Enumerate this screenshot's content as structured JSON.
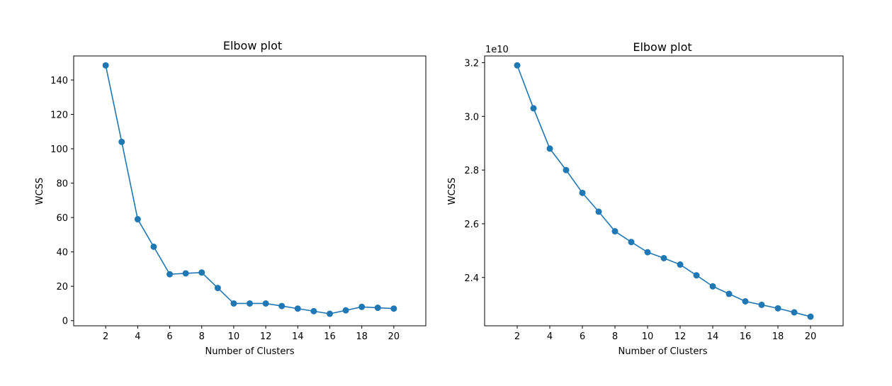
{
  "colors": {
    "series": "#1f77b4",
    "axes": "#000000",
    "background": "#ffffff"
  },
  "chart_data": [
    {
      "type": "line",
      "title": "Elbow plot",
      "xlabel": "Number of Clusters",
      "ylabel": "WCSS",
      "x": [
        2,
        3,
        4,
        5,
        6,
        7,
        8,
        9,
        10,
        11,
        12,
        13,
        14,
        15,
        16,
        17,
        18,
        19,
        20
      ],
      "series": [
        {
          "values": [
            148.5,
            104,
            59,
            43,
            27,
            27.5,
            28,
            19,
            10,
            10,
            10,
            8.5,
            7,
            5.5,
            4,
            6,
            8,
            7.5,
            7
          ],
          "marker": "circle"
        }
      ],
      "xticks": [
        2,
        4,
        6,
        8,
        10,
        12,
        14,
        16,
        18,
        20
      ],
      "yticks": [
        0,
        20,
        40,
        60,
        80,
        100,
        120,
        140
      ],
      "xlim": [
        0,
        22
      ],
      "ylim": [
        -3,
        154
      ],
      "grid": false
    },
    {
      "type": "line",
      "title": "Elbow plot",
      "xlabel": "Number of Clusters",
      "ylabel": "WCSS",
      "y_offset_label": "1e10",
      "x": [
        2,
        3,
        4,
        5,
        6,
        7,
        8,
        9,
        10,
        11,
        12,
        13,
        14,
        15,
        16,
        17,
        18,
        19,
        20
      ],
      "series": [
        {
          "values": [
            3.19,
            3.03,
            2.88,
            2.8,
            2.715,
            2.645,
            2.572,
            2.532,
            2.494,
            2.472,
            2.448,
            2.408,
            2.367,
            2.339,
            2.311,
            2.298,
            2.285,
            2.27,
            2.254
          ],
          "marker": "circle"
        }
      ],
      "xticks": [
        2,
        4,
        6,
        8,
        10,
        12,
        14,
        16,
        18,
        20
      ],
      "yticks": [
        2.4,
        2.6,
        2.8,
        3.0,
        3.2
      ],
      "xlim": [
        0,
        22
      ],
      "ylim": [
        2.22,
        3.225
      ],
      "grid": false
    }
  ]
}
